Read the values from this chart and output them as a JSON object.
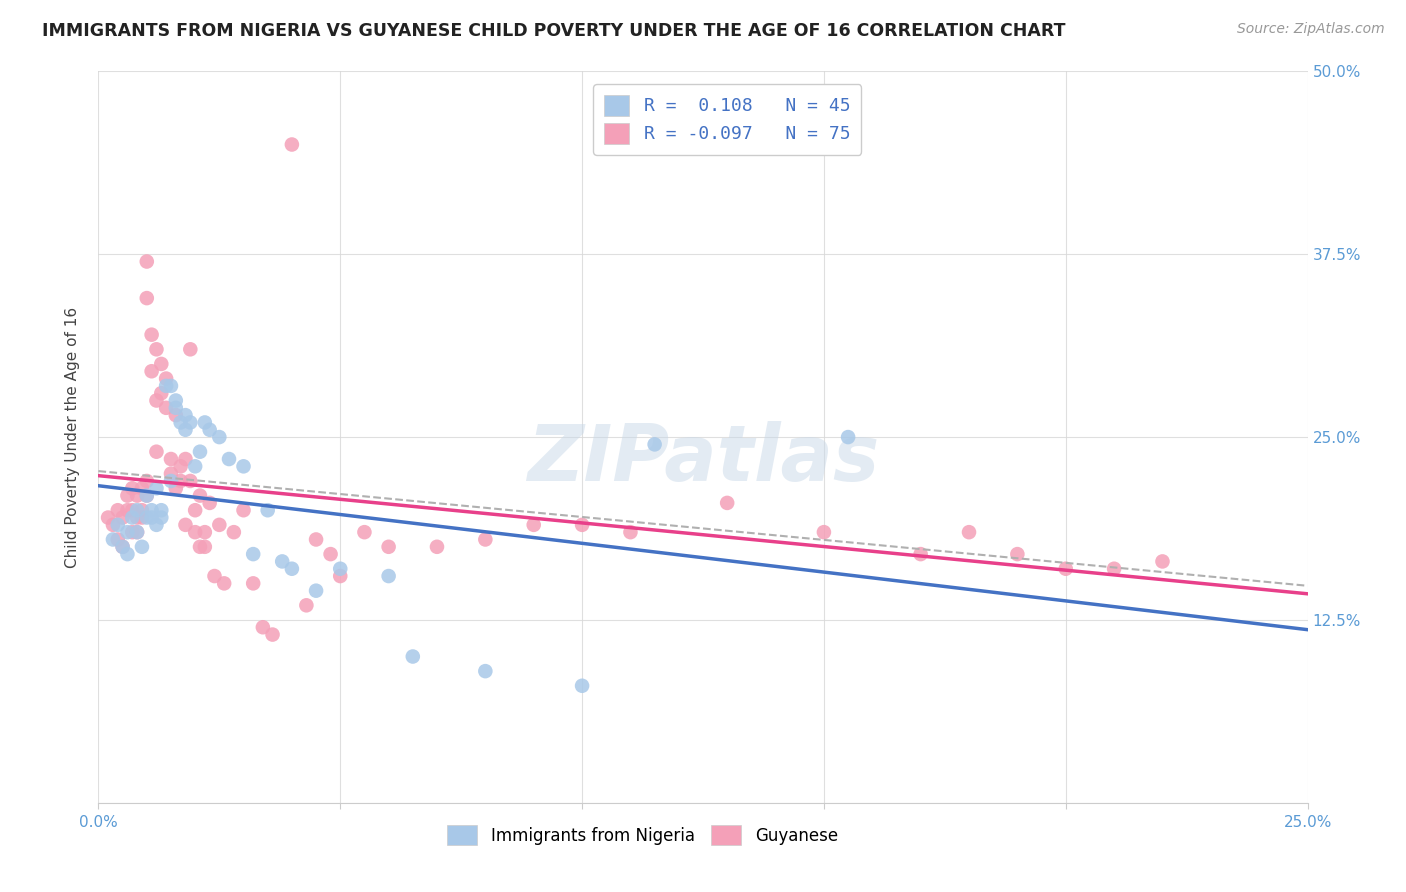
{
  "title": "IMMIGRANTS FROM NIGERIA VS GUYANESE CHILD POVERTY UNDER THE AGE OF 16 CORRELATION CHART",
  "source": "Source: ZipAtlas.com",
  "ylabel": "Child Poverty Under the Age of 16",
  "xlim": [
    0.0,
    0.25
  ],
  "ylim": [
    0.0,
    0.5
  ],
  "xticks": [
    0.0,
    0.05,
    0.1,
    0.15,
    0.2,
    0.25
  ],
  "yticks": [
    0.0,
    0.125,
    0.25,
    0.375,
    0.5
  ],
  "xtick_labels": [
    "0.0%",
    "",
    "",
    "",
    "",
    "25.0%"
  ],
  "ytick_labels": [
    "",
    "12.5%",
    "25.0%",
    "37.5%",
    "50.0%"
  ],
  "blue_color": "#a8c8e8",
  "pink_color": "#f4a0b8",
  "blue_line_color": "#4472c4",
  "pink_line_color": "#e8408a",
  "dashed_line_color": "#b0b0b0",
  "legend_blue_R": "0.108",
  "legend_blue_N": "45",
  "legend_pink_R": "-0.097",
  "legend_pink_N": "75",
  "watermark": "ZIPatlas",
  "blue_R": 0.108,
  "pink_R": -0.097,
  "blue_scatter_x": [
    0.003,
    0.004,
    0.005,
    0.006,
    0.006,
    0.007,
    0.008,
    0.008,
    0.009,
    0.01,
    0.01,
    0.011,
    0.011,
    0.012,
    0.012,
    0.013,
    0.013,
    0.014,
    0.015,
    0.015,
    0.016,
    0.016,
    0.017,
    0.018,
    0.018,
    0.019,
    0.02,
    0.021,
    0.022,
    0.023,
    0.025,
    0.027,
    0.03,
    0.032,
    0.035,
    0.038,
    0.04,
    0.045,
    0.05,
    0.06,
    0.065,
    0.08,
    0.1,
    0.115,
    0.155
  ],
  "blue_scatter_y": [
    0.18,
    0.19,
    0.175,
    0.185,
    0.17,
    0.195,
    0.2,
    0.185,
    0.175,
    0.195,
    0.21,
    0.2,
    0.195,
    0.19,
    0.215,
    0.195,
    0.2,
    0.285,
    0.22,
    0.285,
    0.275,
    0.27,
    0.26,
    0.255,
    0.265,
    0.26,
    0.23,
    0.24,
    0.26,
    0.255,
    0.25,
    0.235,
    0.23,
    0.17,
    0.2,
    0.165,
    0.16,
    0.145,
    0.16,
    0.155,
    0.1,
    0.09,
    0.08,
    0.245,
    0.25
  ],
  "pink_scatter_x": [
    0.002,
    0.003,
    0.004,
    0.004,
    0.005,
    0.005,
    0.006,
    0.006,
    0.007,
    0.007,
    0.007,
    0.008,
    0.008,
    0.008,
    0.009,
    0.009,
    0.009,
    0.01,
    0.01,
    0.01,
    0.01,
    0.011,
    0.011,
    0.012,
    0.012,
    0.012,
    0.013,
    0.013,
    0.014,
    0.014,
    0.015,
    0.015,
    0.016,
    0.016,
    0.017,
    0.017,
    0.018,
    0.018,
    0.019,
    0.019,
    0.02,
    0.02,
    0.021,
    0.021,
    0.022,
    0.022,
    0.023,
    0.024,
    0.025,
    0.026,
    0.028,
    0.03,
    0.032,
    0.034,
    0.036,
    0.04,
    0.043,
    0.045,
    0.048,
    0.05,
    0.055,
    0.06,
    0.07,
    0.08,
    0.09,
    0.1,
    0.11,
    0.13,
    0.15,
    0.17,
    0.18,
    0.19,
    0.2,
    0.21,
    0.22
  ],
  "pink_scatter_y": [
    0.195,
    0.19,
    0.2,
    0.18,
    0.195,
    0.175,
    0.21,
    0.2,
    0.2,
    0.185,
    0.215,
    0.195,
    0.185,
    0.21,
    0.2,
    0.215,
    0.195,
    0.22,
    0.345,
    0.37,
    0.21,
    0.295,
    0.32,
    0.31,
    0.275,
    0.24,
    0.28,
    0.3,
    0.27,
    0.29,
    0.235,
    0.225,
    0.215,
    0.265,
    0.23,
    0.22,
    0.235,
    0.19,
    0.22,
    0.31,
    0.2,
    0.185,
    0.21,
    0.175,
    0.185,
    0.175,
    0.205,
    0.155,
    0.19,
    0.15,
    0.185,
    0.2,
    0.15,
    0.12,
    0.115,
    0.45,
    0.135,
    0.18,
    0.17,
    0.155,
    0.185,
    0.175,
    0.175,
    0.18,
    0.19,
    0.19,
    0.185,
    0.205,
    0.185,
    0.17,
    0.185,
    0.17,
    0.16,
    0.16,
    0.165
  ]
}
